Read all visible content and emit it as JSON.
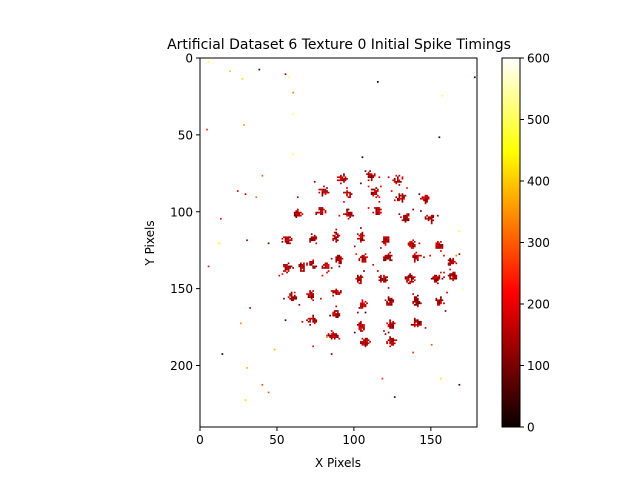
{
  "chart_data": {
    "type": "heatmap",
    "title": "Artificial Dataset 6 Texture 0 Initial Spike Timings",
    "xlabel": "X Pixels",
    "ylabel": "Y Pixels",
    "xlim": [
      0,
      180
    ],
    "ylim": [
      240,
      0
    ],
    "xticks": [
      0,
      50,
      100,
      150
    ],
    "yticks": [
      0,
      50,
      100,
      150,
      200
    ],
    "colorbar": {
      "colormap": "hot",
      "range": [
        0,
        600
      ],
      "ticks": [
        0,
        100,
        200,
        300,
        400,
        500,
        600
      ]
    },
    "grid": false,
    "background_value": "none",
    "clusters": [
      [
        92,
        78
      ],
      [
        110,
        76
      ],
      [
        128,
        79
      ],
      [
        80,
        86
      ],
      [
        96,
        88
      ],
      [
        113,
        87
      ],
      [
        130,
        90
      ],
      [
        146,
        91
      ],
      [
        63,
        101
      ],
      [
        78,
        99
      ],
      [
        96,
        101
      ],
      [
        115,
        99
      ],
      [
        133,
        103
      ],
      [
        149,
        104
      ],
      [
        56,
        118
      ],
      [
        73,
        117
      ],
      [
        88,
        116
      ],
      [
        104,
        116
      ],
      [
        120,
        118
      ],
      [
        137,
        121
      ],
      [
        155,
        122
      ],
      [
        56,
        136
      ],
      [
        72,
        134
      ],
      [
        90,
        131
      ],
      [
        106,
        130
      ],
      [
        122,
        129
      ],
      [
        140,
        129
      ],
      [
        163,
        132
      ],
      [
        66,
        135
      ],
      [
        82,
        135
      ],
      [
        103,
        143
      ],
      [
        118,
        143
      ],
      [
        136,
        143
      ],
      [
        153,
        143
      ],
      [
        164,
        141
      ],
      [
        60,
        155
      ],
      [
        72,
        154
      ],
      [
        88,
        152
      ],
      [
        105,
        160
      ],
      [
        123,
        158
      ],
      [
        140,
        158
      ],
      [
        155,
        158
      ],
      [
        72,
        170
      ],
      [
        88,
        166
      ],
      [
        104,
        174
      ],
      [
        124,
        173
      ],
      [
        140,
        172
      ],
      [
        86,
        180
      ],
      [
        106,
        184
      ],
      [
        124,
        184
      ]
    ],
    "sparse_points": [
      [
        5,
        2,
        480
      ],
      [
        19,
        8,
        400
      ],
      [
        27,
        13,
        420
      ],
      [
        38,
        7,
        50
      ],
      [
        55,
        10,
        120
      ],
      [
        57,
        12,
        500
      ],
      [
        115,
        15,
        10
      ],
      [
        178,
        12,
        30
      ],
      [
        4,
        46,
        250
      ],
      [
        155,
        51,
        20
      ],
      [
        60,
        22,
        330
      ],
      [
        28,
        43,
        360
      ],
      [
        157,
        24,
        480
      ],
      [
        60,
        36,
        520
      ],
      [
        40,
        76,
        300
      ],
      [
        24,
        86,
        180
      ],
      [
        29,
        88,
        160
      ],
      [
        36,
        90,
        320
      ],
      [
        13,
        104,
        230
      ],
      [
        30,
        118,
        150
      ],
      [
        44,
        120,
        80
      ],
      [
        105,
        64,
        30
      ],
      [
        5,
        135,
        240
      ],
      [
        63,
        90,
        170
      ],
      [
        32,
        162,
        150
      ],
      [
        14,
        192,
        20
      ],
      [
        26,
        172,
        350
      ],
      [
        30,
        201,
        380
      ],
      [
        40,
        212,
        280
      ],
      [
        44,
        217,
        300
      ],
      [
        29,
        222,
        420
      ],
      [
        55,
        170,
        60
      ],
      [
        85,
        192,
        90
      ],
      [
        118,
        208,
        260
      ],
      [
        126,
        220,
        60
      ],
      [
        156,
        208,
        430
      ],
      [
        168,
        212,
        40
      ],
      [
        73,
        187,
        220
      ],
      [
        48,
        189,
        380
      ],
      [
        138,
        191,
        250
      ],
      [
        82,
        181,
        350
      ],
      [
        166,
        128,
        330
      ],
      [
        168,
        112,
        480
      ],
      [
        170,
        150,
        520
      ],
      [
        12,
        120,
        450
      ],
      [
        150,
        186,
        300
      ],
      [
        60,
        62,
        500
      ]
    ]
  }
}
